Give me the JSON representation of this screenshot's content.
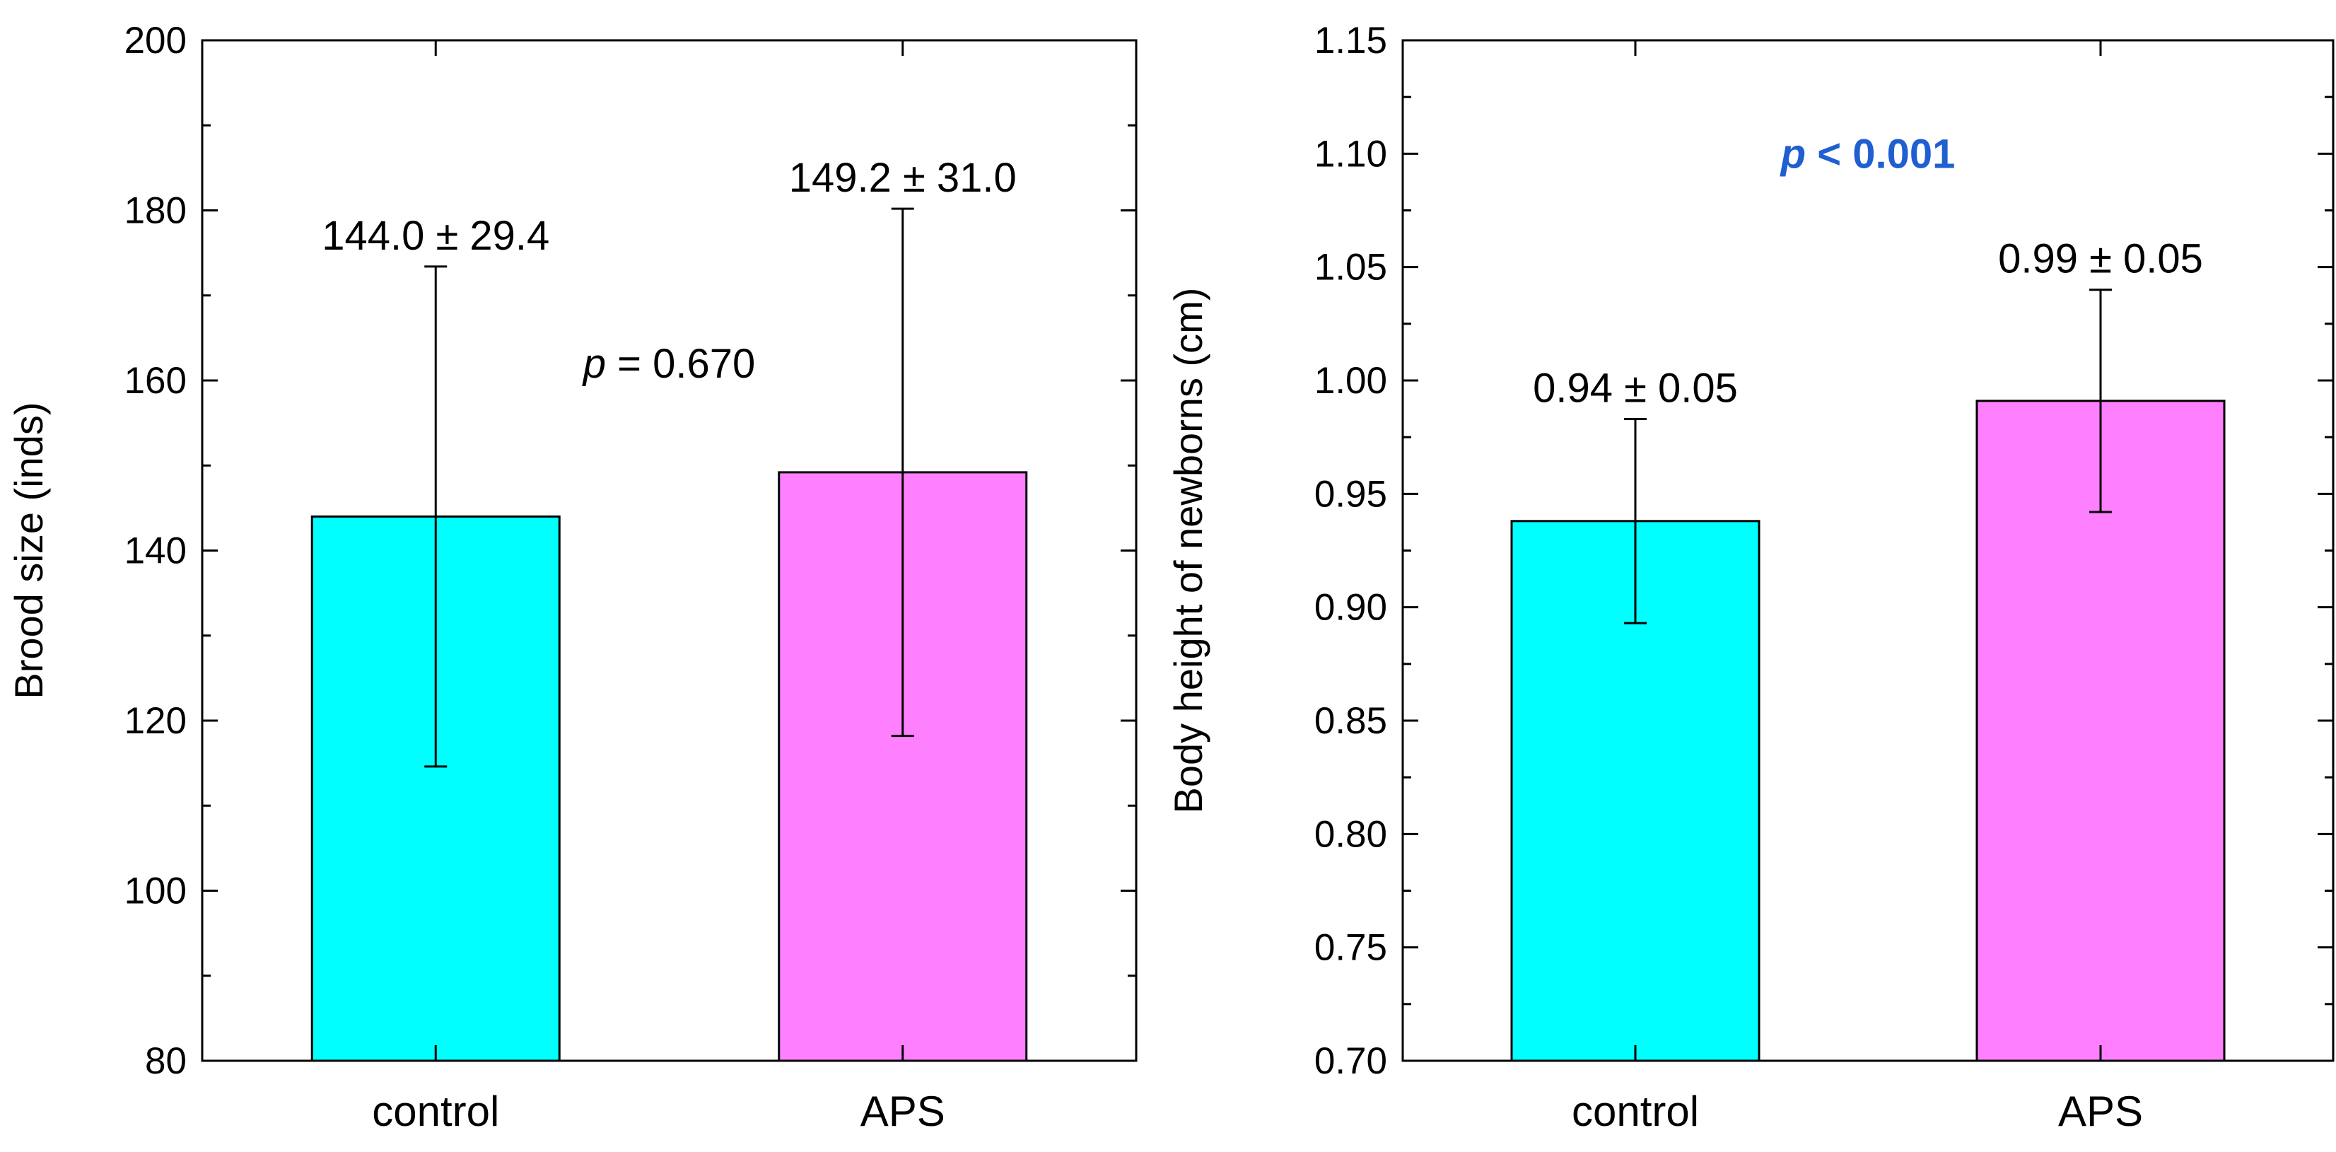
{
  "chart_data": [
    {
      "type": "bar",
      "categories": [
        "control",
        "APS"
      ],
      "values": [
        144.0,
        149.2
      ],
      "errors": [
        29.4,
        31.0
      ],
      "bar_labels": [
        "144.0 ± 29.4",
        "149.2 ± 31.0"
      ],
      "colors": [
        "#00FFFF",
        "#FF80FF"
      ],
      "xlabel": "",
      "ylabel": "Brood size (inds)",
      "ylim": [
        80,
        200
      ],
      "yticks": [
        80,
        100,
        120,
        140,
        160,
        180,
        200
      ],
      "ytick_labels": [
        "80",
        "100",
        "120",
        "140",
        "160",
        "180",
        "200"
      ],
      "annotation": {
        "p_symbol": "p",
        "p_rest": " = 0.670",
        "color": "#000000",
        "bold": false
      },
      "annotation_pos": {
        "x_cat": 0.5,
        "y": 162
      }
    },
    {
      "type": "bar",
      "categories": [
        "control",
        "APS"
      ],
      "values": [
        0.938,
        0.991
      ],
      "errors": [
        0.045,
        0.049
      ],
      "bar_labels": [
        "0.94 ± 0.05",
        "0.99 ± 0.05"
      ],
      "colors": [
        "#00FFFF",
        "#FF80FF"
      ],
      "xlabel": "",
      "ylabel": "Body height of newborns (cm)",
      "ylim": [
        0.7,
        1.15
      ],
      "yticks": [
        0.7,
        0.75,
        0.8,
        0.85,
        0.9,
        0.95,
        1.0,
        1.05,
        1.1,
        1.15
      ],
      "ytick_labels": [
        "0.70",
        "0.75",
        "0.80",
        "0.85",
        "0.90",
        "0.95",
        "1.00",
        "1.05",
        "1.10",
        "1.15"
      ],
      "annotation": {
        "p_symbol": "p",
        "p_rest": " < 0.001",
        "color": "#1F5FD0",
        "bold": true
      },
      "annotation_pos": {
        "x_cat": 0.5,
        "y": 1.1
      }
    }
  ]
}
